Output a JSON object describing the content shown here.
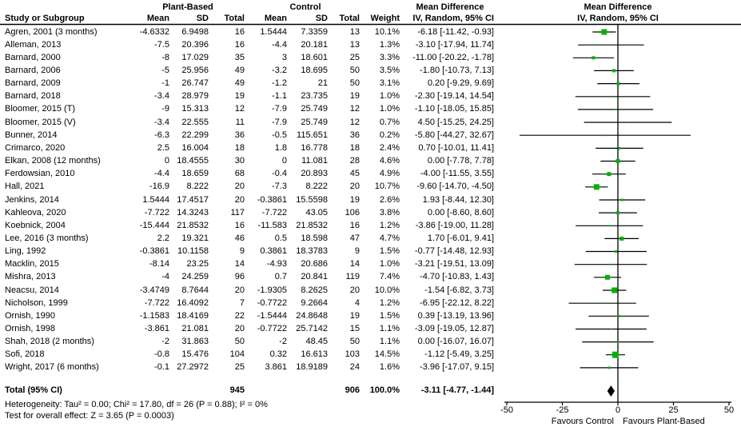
{
  "header": {
    "group_plant": "Plant-Based",
    "group_control": "Control",
    "md_col_title": "Mean Difference",
    "md_plot_title": "Mean Difference",
    "study_col": "Study or Subgroup",
    "mean": "Mean",
    "sd": "SD",
    "total": "Total",
    "weight": "Weight",
    "iv_label": "IV, Random, 95% CI",
    "iv_plot_label": "IV, Random, 95% CI"
  },
  "chart_data": {
    "type": "forest",
    "marker_color": "#00b200",
    "line_color": "#000000",
    "diamond_color": "#000000",
    "axis": {
      "min": -50,
      "max": 50,
      "ticks": [
        "-50",
        "-25",
        "0",
        "25",
        "50"
      ],
      "favours_left": "Favours Control",
      "favours_right": "Favours Plant-Based"
    },
    "studies": [
      {
        "name": "Agren, 2001 (3 months)",
        "pb_mean": "-4.6332",
        "pb_sd": "6.9498",
        "pb_total": "16",
        "c_mean": "1.5444",
        "c_sd": "7.3359",
        "c_total": "13",
        "weight": "10.1%",
        "md_ci": "-6.18 [-11.42, -0.93]"
      },
      {
        "name": "Alleman, 2013",
        "pb_mean": "-7.5",
        "pb_sd": "20.396",
        "pb_total": "16",
        "c_mean": "-4.4",
        "c_sd": "20.181",
        "c_total": "13",
        "weight": "1.3%",
        "md_ci": "-3.10 [-17.94, 11.74]"
      },
      {
        "name": "Barnard, 2000",
        "pb_mean": "-8",
        "pb_sd": "17.029",
        "pb_total": "35",
        "c_mean": "3",
        "c_sd": "18.601",
        "c_total": "25",
        "weight": "3.3%",
        "md_ci": "-11.00 [-20.22, -1.78]"
      },
      {
        "name": "Barnard, 2006",
        "pb_mean": "-5",
        "pb_sd": "25.956",
        "pb_total": "49",
        "c_mean": "-3.2",
        "c_sd": "18.695",
        "c_total": "50",
        "weight": "3.5%",
        "md_ci": "-1.80 [-10.73, 7.13]"
      },
      {
        "name": "Barnard, 2009",
        "pb_mean": "-1",
        "pb_sd": "26.747",
        "pb_total": "49",
        "c_mean": "-1.2",
        "c_sd": "21",
        "c_total": "50",
        "weight": "3.1%",
        "md_ci": "0.20 [-9.29, 9.69]"
      },
      {
        "name": "Barnard, 2018",
        "pb_mean": "-3.4",
        "pb_sd": "28.979",
        "pb_total": "19",
        "c_mean": "-1.1",
        "c_sd": "23.735",
        "c_total": "19",
        "weight": "1.0%",
        "md_ci": "-2.30 [-19.14, 14.54]"
      },
      {
        "name": "Bloomer, 2015 (T)",
        "pb_mean": "-9",
        "pb_sd": "15.313",
        "pb_total": "12",
        "c_mean": "-7.9",
        "c_sd": "25.749",
        "c_total": "12",
        "weight": "1.0%",
        "md_ci": "-1.10 [-18.05, 15.85]"
      },
      {
        "name": "Bloomer, 2015 (V)",
        "pb_mean": "-3.4",
        "pb_sd": "22.555",
        "pb_total": "11",
        "c_mean": "-7.9",
        "c_sd": "25.749",
        "c_total": "12",
        "weight": "0.7%",
        "md_ci": "4.50 [-15.25, 24.25]"
      },
      {
        "name": "Bunner, 2014",
        "pb_mean": "-6.3",
        "pb_sd": "22.299",
        "pb_total": "36",
        "c_mean": "-0.5",
        "c_sd": "115.651",
        "c_total": "36",
        "weight": "0.2%",
        "md_ci": "-5.80 [-44.27, 32.67]"
      },
      {
        "name": "Crimarco, 2020",
        "pb_mean": "2.5",
        "pb_sd": "16.004",
        "pb_total": "18",
        "c_mean": "1.8",
        "c_sd": "16.778",
        "c_total": "18",
        "weight": "2.4%",
        "md_ci": "0.70 [-10.01, 11.41]"
      },
      {
        "name": "Elkan, 2008 (12 months)",
        "pb_mean": "0",
        "pb_sd": "18.4555",
        "pb_total": "30",
        "c_mean": "0",
        "c_sd": "11.081",
        "c_total": "28",
        "weight": "4.6%",
        "md_ci": "0.00 [-7.78, 7.78]"
      },
      {
        "name": "Ferdowsian, 2010",
        "pb_mean": "-4.4",
        "pb_sd": "18.659",
        "pb_total": "68",
        "c_mean": "-0.4",
        "c_sd": "20.893",
        "c_total": "45",
        "weight": "4.9%",
        "md_ci": "-4.00 [-11.55, 3.55]"
      },
      {
        "name": "Hall, 2021",
        "pb_mean": "-16.9",
        "pb_sd": "8.222",
        "pb_total": "20",
        "c_mean": "-7.3",
        "c_sd": "8.222",
        "c_total": "20",
        "weight": "10.7%",
        "md_ci": "-9.60 [-14.70, -4.50]"
      },
      {
        "name": "Jenkins, 2014",
        "pb_mean": "1.5444",
        "pb_sd": "17.4517",
        "pb_total": "20",
        "c_mean": "-0.3861",
        "c_sd": "15.5598",
        "c_total": "19",
        "weight": "2.6%",
        "md_ci": "1.93 [-8.44, 12.30]"
      },
      {
        "name": "Kahleova, 2020",
        "pb_mean": "-7.722",
        "pb_sd": "14.3243",
        "pb_total": "117",
        "c_mean": "-7.722",
        "c_sd": "43.05",
        "c_total": "106",
        "weight": "3.8%",
        "md_ci": "0.00 [-8.60, 8.60]"
      },
      {
        "name": "Koebnick, 2004",
        "pb_mean": "-15.444",
        "pb_sd": "21.8532",
        "pb_total": "16",
        "c_mean": "-11.583",
        "c_sd": "21.8532",
        "c_total": "16",
        "weight": "1.2%",
        "md_ci": "-3.86 [-19.00, 11.28]"
      },
      {
        "name": "Lee, 2016 (3 months)",
        "pb_mean": "2.2",
        "pb_sd": "19.321",
        "pb_total": "46",
        "c_mean": "0.5",
        "c_sd": "18.598",
        "c_total": "47",
        "weight": "4.7%",
        "md_ci": "1.70 [-6.01, 9.41]"
      },
      {
        "name": "Ling, 1992",
        "pb_mean": "-0.3861",
        "pb_sd": "10.1158",
        "pb_total": "9",
        "c_mean": "0.3861",
        "c_sd": "18.3783",
        "c_total": "9",
        "weight": "1.5%",
        "md_ci": "-0.77 [-14.48, 12.93]"
      },
      {
        "name": "Macklin, 2015",
        "pb_mean": "-8.14",
        "pb_sd": "23.25",
        "pb_total": "14",
        "c_mean": "-4.93",
        "c_sd": "20.686",
        "c_total": "14",
        "weight": "1.0%",
        "md_ci": "-3.21 [-19.51, 13.09]"
      },
      {
        "name": "Mishra, 2013",
        "pb_mean": "-4",
        "pb_sd": "24.259",
        "pb_total": "96",
        "c_mean": "0.7",
        "c_sd": "20.841",
        "c_total": "119",
        "weight": "7.4%",
        "md_ci": "-4.70 [-10.83, 1.43]"
      },
      {
        "name": "Neacsu, 2014",
        "pb_mean": "-3.4749",
        "pb_sd": "8.7644",
        "pb_total": "20",
        "c_mean": "-1.9305",
        "c_sd": "8.2625",
        "c_total": "20",
        "weight": "10.0%",
        "md_ci": "-1.54 [-6.82, 3.73]"
      },
      {
        "name": "Nicholson, 1999",
        "pb_mean": "-7.722",
        "pb_sd": "16.4092",
        "pb_total": "7",
        "c_mean": "-0.7722",
        "c_sd": "9.2664",
        "c_total": "4",
        "weight": "1.2%",
        "md_ci": "-6.95 [-22.12, 8.22]"
      },
      {
        "name": "Ornish, 1990",
        "pb_mean": "-1.1583",
        "pb_sd": "18.4169",
        "pb_total": "22",
        "c_mean": "-1.5444",
        "c_sd": "24.8648",
        "c_total": "19",
        "weight": "1.5%",
        "md_ci": "0.39 [-13.19, 13.96]"
      },
      {
        "name": "Ornish, 1998",
        "pb_mean": "-3.861",
        "pb_sd": "21.081",
        "pb_total": "20",
        "c_mean": "-0.7722",
        "c_sd": "25.7142",
        "c_total": "15",
        "weight": "1.1%",
        "md_ci": "-3.09 [-19.05, 12.87]"
      },
      {
        "name": "Shah, 2018 (2 months)",
        "pb_mean": "-2",
        "pb_sd": "31.863",
        "pb_total": "50",
        "c_mean": "-2",
        "c_sd": "48.45",
        "c_total": "50",
        "weight": "1.1%",
        "md_ci": "0.00 [-16.07, 16.07]"
      },
      {
        "name": "Sofi, 2018",
        "pb_mean": "-0.8",
        "pb_sd": "15.476",
        "pb_total": "104",
        "c_mean": "0.32",
        "c_sd": "16.613",
        "c_total": "103",
        "weight": "14.5%",
        "md_ci": "-1.12 [-5.49, 3.25]"
      },
      {
        "name": "Wright, 2017 (6 months)",
        "pb_mean": "-0.1",
        "pb_sd": "27.2972",
        "pb_total": "25",
        "c_mean": "3.861",
        "c_sd": "18.9189",
        "c_total": "24",
        "weight": "1.6%",
        "md_ci": "-3.96 [-17.07, 9.15]"
      }
    ],
    "total_row": {
      "name": "Total (95% CI)",
      "pb_total": "945",
      "c_total": "906",
      "weight": "100.0%",
      "md_ci": "-3.11 [-4.77, -1.44]"
    },
    "heterogeneity": "Heterogeneity: Tau² = 0.00; Chi² = 17.80, df = 26 (P = 0.88); I² = 0%",
    "overall_effect": "Test for overall effect: Z = 3.65 (P = 0.0003)"
  }
}
